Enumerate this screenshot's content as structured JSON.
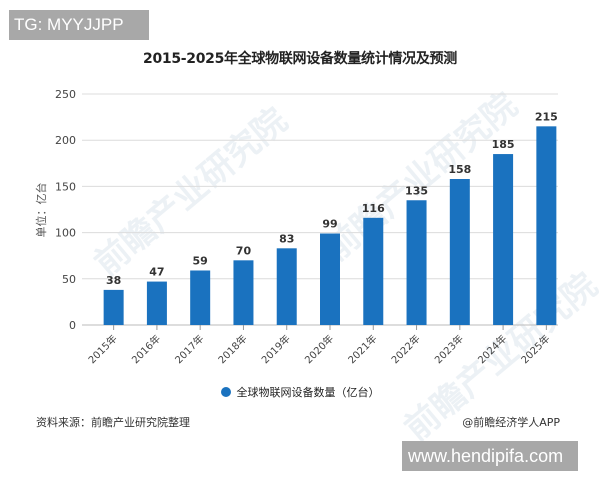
{
  "badges": {
    "top_left": "TG: MYYJJPP",
    "bottom_right": "www.hendipifa.com"
  },
  "footer": {
    "source": "资料来源：前瞻产业研究院整理",
    "credit": "@前瞻经济学人APP"
  },
  "watermark": {
    "text": "前瞻产业研究院"
  },
  "colors": {
    "bar": "#1a72bf",
    "grid": "#dcdcdc",
    "axis_text": "#444444"
  },
  "chart_data": {
    "type": "bar",
    "title": "2015-2025年全球物联网设备数量统计情况及预测",
    "xlabel": "",
    "ylabel": "单位：亿台",
    "categories": [
      "2015年",
      "2016年",
      "2017年",
      "2018年",
      "2019年",
      "2020年",
      "2021年",
      "2022年",
      "2023年",
      "2024年",
      "2025年"
    ],
    "series": [
      {
        "name": "全球物联网设备数量（亿台）",
        "values": [
          38,
          47,
          59,
          70,
          83,
          99,
          116,
          135,
          158,
          185,
          215
        ]
      }
    ],
    "ylim": [
      0,
      250
    ],
    "yticks": [
      0,
      50,
      100,
      150,
      200,
      250
    ],
    "grid": true,
    "legend_position": "bottom",
    "data_labels": true
  }
}
